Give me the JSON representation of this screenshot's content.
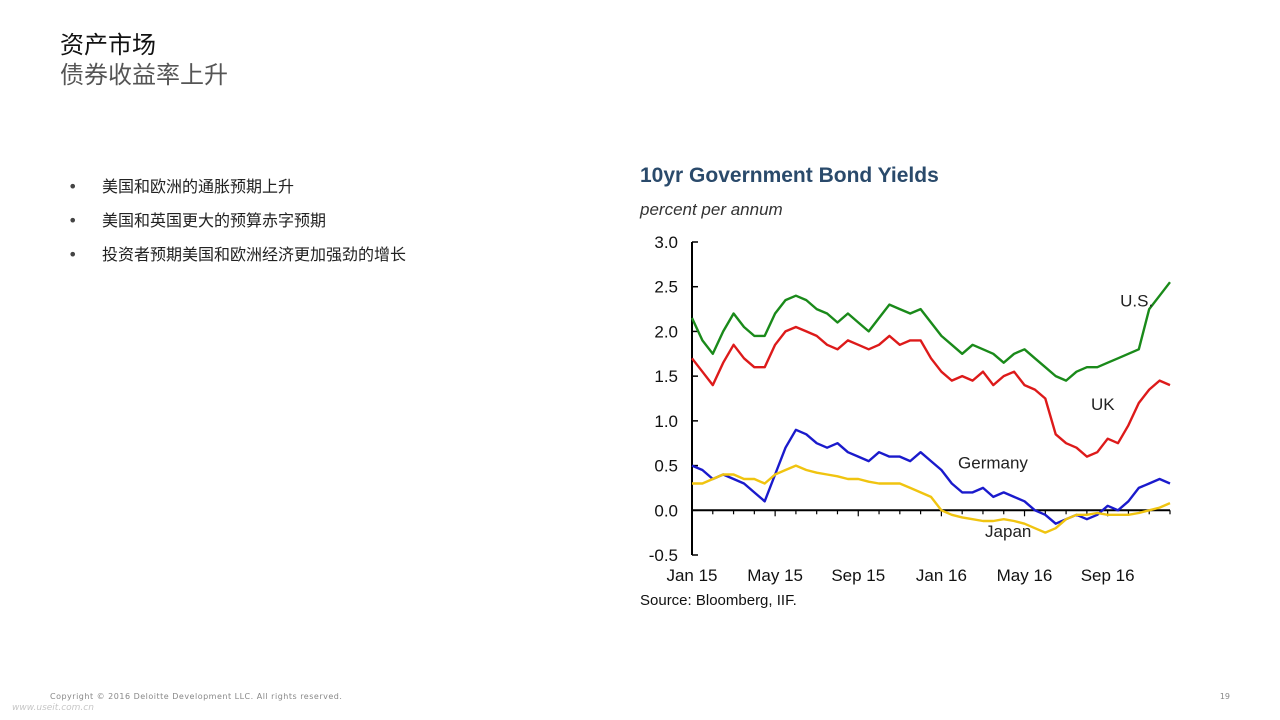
{
  "slide": {
    "title": "资产市场",
    "subtitle": "债券收益率上升"
  },
  "bullets": [
    "美国和欧洲的通胀预期上升",
    "美国和英国更大的预算赤字预期",
    "投资者预期美国和欧洲经济更加强劲的增长"
  ],
  "bullet_symbol": "•",
  "footer": {
    "copyright": "Copyright © 2016 Deloitte Development LLC. All rights reserved.",
    "watermark": "www.useit.com.cn",
    "page_number": "19"
  },
  "chart_data": {
    "type": "line",
    "title": "10yr Government Bond Yields",
    "subtitle": "percent per annum",
    "source": "Source: Bloomberg, IIF.",
    "x_tick_labels": [
      "Jan 15",
      "May 15",
      "Sep 15",
      "Jan 16",
      "May 16",
      "Sep 16"
    ],
    "x_range_months": [
      0,
      23
    ],
    "ylim": [
      -0.5,
      3.0
    ],
    "y_ticks": [
      -0.5,
      0.0,
      0.5,
      1.0,
      1.5,
      2.0,
      2.5,
      3.0
    ],
    "grid": false,
    "x": [
      0,
      0.5,
      1,
      1.5,
      2,
      2.5,
      3,
      3.5,
      4,
      4.5,
      5,
      5.5,
      6,
      6.5,
      7,
      7.5,
      8,
      8.5,
      9,
      9.5,
      10,
      10.5,
      11,
      11.5,
      12,
      12.5,
      13,
      13.5,
      14,
      14.5,
      15,
      15.5,
      16,
      16.5,
      17,
      17.5,
      18,
      18.5,
      19,
      19.5,
      20,
      20.5,
      21,
      21.5,
      22,
      22.5,
      23
    ],
    "series": [
      {
        "name": "U.S.",
        "color": "#1a8a1a",
        "label_at": [
          20.6,
          2.28
        ],
        "values": [
          2.15,
          1.9,
          1.75,
          2.0,
          2.2,
          2.05,
          1.95,
          1.95,
          2.2,
          2.35,
          2.4,
          2.35,
          2.25,
          2.2,
          2.1,
          2.2,
          2.1,
          2.0,
          2.15,
          2.3,
          2.25,
          2.2,
          2.25,
          2.1,
          1.95,
          1.85,
          1.75,
          1.85,
          1.8,
          1.75,
          1.65,
          1.75,
          1.8,
          1.7,
          1.6,
          1.5,
          1.45,
          1.55,
          1.6,
          1.6,
          1.65,
          1.7,
          1.75,
          1.8,
          2.25,
          2.4,
          2.55
        ]
      },
      {
        "name": "UK",
        "color": "#dd1a1a",
        "label_at": [
          19.2,
          1.12
        ],
        "values": [
          1.7,
          1.55,
          1.4,
          1.65,
          1.85,
          1.7,
          1.6,
          1.6,
          1.85,
          2.0,
          2.05,
          2.0,
          1.95,
          1.85,
          1.8,
          1.9,
          1.85,
          1.8,
          1.85,
          1.95,
          1.85,
          1.9,
          1.9,
          1.7,
          1.55,
          1.45,
          1.5,
          1.45,
          1.55,
          1.4,
          1.5,
          1.55,
          1.4,
          1.35,
          1.25,
          0.85,
          0.75,
          0.7,
          0.6,
          0.65,
          0.8,
          0.75,
          0.95,
          1.2,
          1.35,
          1.45,
          1.4
        ]
      },
      {
        "name": "Germany",
        "color": "#1a1acc",
        "label_at": [
          12.8,
          0.47
        ],
        "values": [
          0.5,
          0.45,
          0.35,
          0.4,
          0.35,
          0.3,
          0.2,
          0.1,
          0.4,
          0.7,
          0.9,
          0.85,
          0.75,
          0.7,
          0.75,
          0.65,
          0.6,
          0.55,
          0.65,
          0.6,
          0.6,
          0.55,
          0.65,
          0.55,
          0.45,
          0.3,
          0.2,
          0.2,
          0.25,
          0.15,
          0.2,
          0.15,
          0.1,
          0.0,
          -0.05,
          -0.15,
          -0.1,
          -0.05,
          -0.1,
          -0.05,
          0.05,
          0.0,
          0.1,
          0.25,
          0.3,
          0.35,
          0.3
        ]
      },
      {
        "name": "Japan",
        "color": "#f0c410",
        "label_at": [
          14.1,
          -0.3
        ],
        "values": [
          0.3,
          0.3,
          0.35,
          0.4,
          0.4,
          0.35,
          0.35,
          0.3,
          0.4,
          0.45,
          0.5,
          0.45,
          0.42,
          0.4,
          0.38,
          0.35,
          0.35,
          0.32,
          0.3,
          0.3,
          0.3,
          0.25,
          0.2,
          0.15,
          0.0,
          -0.05,
          -0.08,
          -0.1,
          -0.12,
          -0.12,
          -0.1,
          -0.12,
          -0.15,
          -0.2,
          -0.25,
          -0.2,
          -0.1,
          -0.05,
          -0.05,
          -0.03,
          -0.05,
          -0.05,
          -0.05,
          -0.03,
          0.0,
          0.03,
          0.08
        ]
      }
    ]
  }
}
